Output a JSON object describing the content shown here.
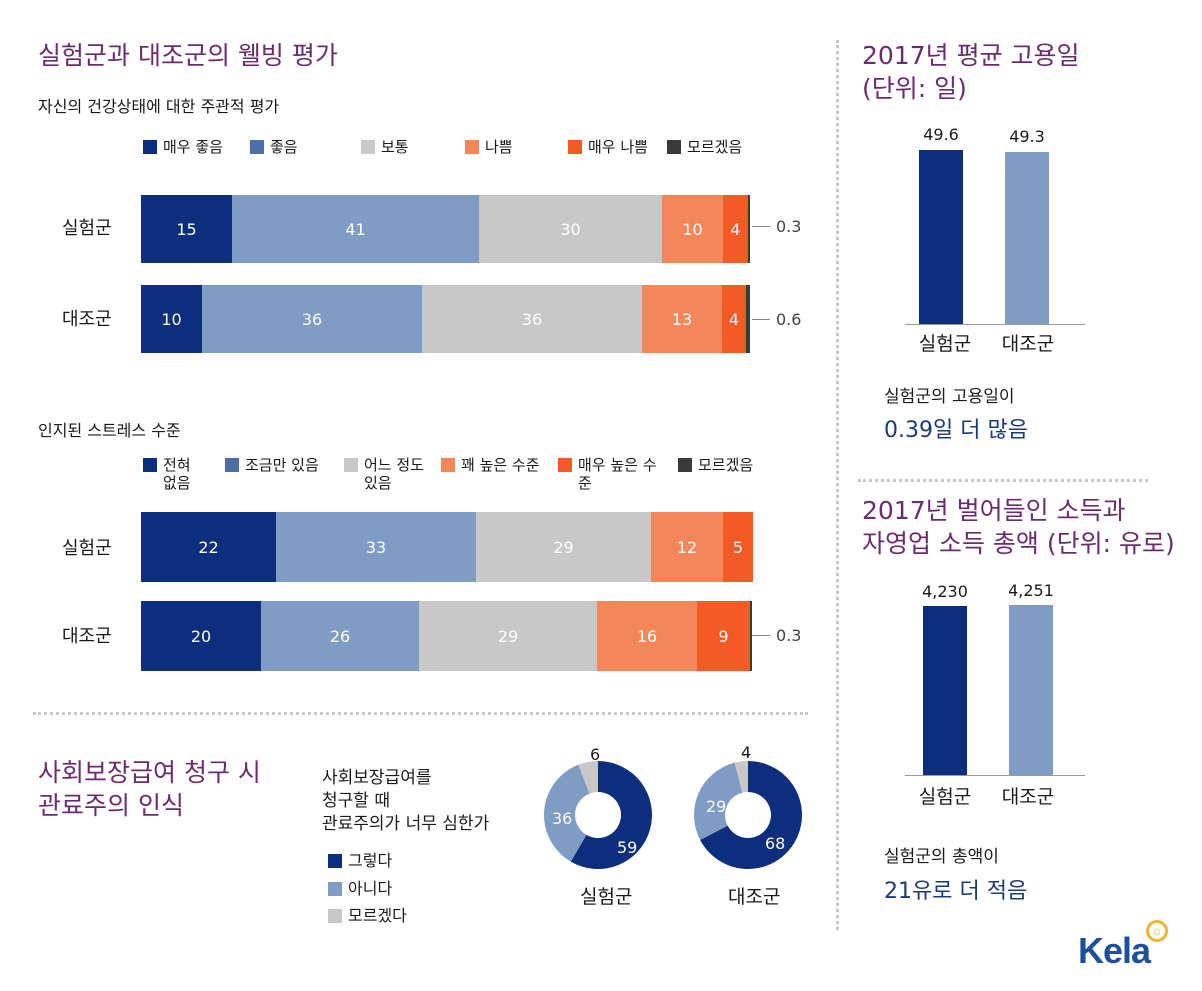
{
  "colors": {
    "very_good": "#0d2d7d",
    "good": "#7f9cc4",
    "average": "#c8c8c8",
    "bad": "#f4875a",
    "very_bad": "#f25b25",
    "dont_know": "#3a3a3a",
    "title_purple": "#6b2c6e"
  },
  "wellbeing": {
    "title": "실험군과 대조군의 웰빙 평가",
    "health": {
      "subtitle": "자신의 건강상태에 대한 주관적 평가",
      "legend": [
        "매우 좋음",
        "좋음",
        "보통",
        "나쁨",
        "매우 나쁨",
        "모르겠음"
      ],
      "rows": [
        {
          "label": "실험군",
          "values": [
            "15",
            "41",
            "30",
            "10",
            "4"
          ],
          "note": "0.3"
        },
        {
          "label": "대조군",
          "values": [
            "10",
            "36",
            "36",
            "13",
            "4"
          ],
          "note": "0.6"
        }
      ]
    },
    "stress": {
      "subtitle": "인지된 스트레스 수준",
      "legend": [
        "전혀 없음",
        "조금만 있음",
        "어느 정도 있음",
        "꽤 높은 수준",
        "매우 높은 수준",
        "모르겠음"
      ],
      "rows": [
        {
          "label": "실험군",
          "values": [
            "22",
            "33",
            "29",
            "12",
            "5"
          ],
          "note": ""
        },
        {
          "label": "대조군",
          "values": [
            "20",
            "26",
            "29",
            "16",
            "9"
          ],
          "note": "0.3"
        }
      ]
    }
  },
  "employment": {
    "title_line1": "2017년 평균 고용일",
    "title_line2": "(단위: 일)",
    "bars": [
      {
        "label": "실험군",
        "value": "49.6"
      },
      {
        "label": "대조군",
        "value": "49.3"
      }
    ],
    "note_line1": "실험군의 고용일이",
    "note_line2": "0.39일 더 많음"
  },
  "income": {
    "title_line1": "2017년 벌어들인 소득과",
    "title_line2": "자영업 소득 총액 (단위: 유로)",
    "bars": [
      {
        "label": "실험군",
        "value": "4,230"
      },
      {
        "label": "대조군",
        "value": "4,251"
      }
    ],
    "note_line1": "실험군의 총액이",
    "note_line2": "21유로 더 적음"
  },
  "bureaucracy": {
    "title_line1": "사회보장급여 청구 시",
    "title_line2": "관료주의 인식",
    "question_line1": "사회보장급여를",
    "question_line2": "청구할 때",
    "question_line3": "관료주의가 너무 심한가",
    "legend": [
      "그렇다",
      "아니다",
      "모르겠다"
    ],
    "donuts": [
      {
        "label": "실험군",
        "values": [
          "59",
          "36",
          "6"
        ]
      },
      {
        "label": "대조군",
        "values": [
          "68",
          "29",
          "4"
        ]
      }
    ]
  },
  "logo": "Kela",
  "chart_data": [
    {
      "type": "bar",
      "orientation": "horizontal-stacked",
      "title": "자신의 건강상태에 대한 주관적 평가",
      "categories": [
        "실험군",
        "대조군"
      ],
      "series": [
        {
          "name": "매우 좋음",
          "values": [
            15,
            10
          ]
        },
        {
          "name": "좋음",
          "values": [
            41,
            36
          ]
        },
        {
          "name": "보통",
          "values": [
            30,
            36
          ]
        },
        {
          "name": "나쁨",
          "values": [
            10,
            13
          ]
        },
        {
          "name": "매우 나쁨",
          "values": [
            4,
            4
          ]
        },
        {
          "name": "모르겠음",
          "values": [
            0.3,
            0.6
          ]
        }
      ],
      "legend": "top"
    },
    {
      "type": "bar",
      "orientation": "horizontal-stacked",
      "title": "인지된 스트레스 수준",
      "categories": [
        "실험군",
        "대조군"
      ],
      "series": [
        {
          "name": "전혀 없음",
          "values": [
            22,
            20
          ]
        },
        {
          "name": "조금만 있음",
          "values": [
            33,
            26
          ]
        },
        {
          "name": "어느 정도 있음",
          "values": [
            29,
            29
          ]
        },
        {
          "name": "꽤 높은 수준",
          "values": [
            12,
            16
          ]
        },
        {
          "name": "매우 높은 수준",
          "values": [
            5,
            9
          ]
        },
        {
          "name": "모르겠음",
          "values": [
            0,
            0.3
          ]
        }
      ],
      "legend": "top"
    },
    {
      "type": "bar",
      "title": "2017년 평균 고용일 (단위: 일)",
      "categories": [
        "실험군",
        "대조군"
      ],
      "values": [
        49.6,
        49.3
      ]
    },
    {
      "type": "bar",
      "title": "2017년 벌어들인 소득과 자영업 소득 총액 (단위: 유로)",
      "categories": [
        "실험군",
        "대조군"
      ],
      "values": [
        4230,
        4251
      ]
    },
    {
      "type": "pie",
      "variant": "donut",
      "title": "실험군",
      "categories": [
        "그렇다",
        "아니다",
        "모르겠다"
      ],
      "values": [
        59,
        36,
        6
      ]
    },
    {
      "type": "pie",
      "variant": "donut",
      "title": "대조군",
      "categories": [
        "그렇다",
        "아니다",
        "모르겠다"
      ],
      "values": [
        68,
        29,
        4
      ]
    }
  ]
}
